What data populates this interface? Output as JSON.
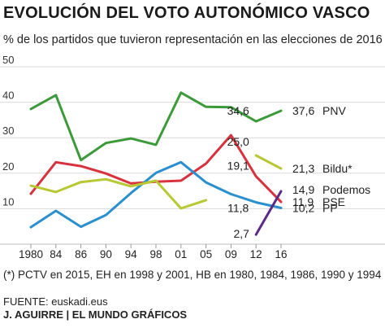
{
  "title": "EVOLUCIÓN DEL VOTO AUTONÓMICO VASCO",
  "subtitle": "% de los partidos que tuvieron representación en las elecciones de 2016",
  "footnote": "(*) PCTV en 2015, EH en 1998 y 2001, HB en 1980, 1984, 1986, 1990 y 1994",
  "source": "FUENTE: euskadi.eus",
  "credit": "J. AGUIRRE | EL MUNDO GRÁFICOS",
  "chart_data": {
    "type": "line",
    "title": "EVOLUCIÓN DEL VOTO AUTONÓMICO VASCO",
    "ylim": [
      0,
      50
    ],
    "yticks": [
      10,
      20,
      30,
      40,
      50
    ],
    "grid": true,
    "categories": [
      "1980",
      "84",
      "86",
      "90",
      "94",
      "98",
      "01",
      "05",
      "09",
      "12",
      "16"
    ],
    "series": [
      {
        "name": "PNV",
        "color": "#3d9a3a",
        "values": [
          38.1,
          42.0,
          23.7,
          28.5,
          29.8,
          28.0,
          42.7,
          38.7,
          38.6,
          34.6,
          37.6
        ],
        "labels": [
          null,
          null,
          null,
          null,
          null,
          null,
          null,
          null,
          null,
          "34,6",
          "37,6"
        ]
      },
      {
        "name": "PSE",
        "color": "#d8323e",
        "values": [
          14.2,
          23.1,
          22.0,
          19.9,
          17.1,
          17.6,
          17.9,
          22.7,
          30.7,
          19.1,
          11.9
        ],
        "labels": [
          null,
          null,
          null,
          null,
          null,
          null,
          null,
          null,
          null,
          "19,1",
          "11,9"
        ]
      },
      {
        "name": "PP",
        "color": "#2a8fcf",
        "values": [
          4.8,
          9.4,
          4.9,
          8.2,
          14.4,
          20.1,
          23.1,
          17.4,
          14.1,
          11.8,
          10.2
        ],
        "labels": [
          null,
          null,
          null,
          null,
          null,
          null,
          null,
          null,
          null,
          "11,8",
          "10,2"
        ]
      },
      {
        "name": "Bildu*",
        "color": "#b8c832",
        "values": [
          16.5,
          14.7,
          17.5,
          18.3,
          16.3,
          17.9,
          10.1,
          12.4,
          null,
          25.0,
          21.3
        ],
        "labels": [
          null,
          null,
          null,
          null,
          null,
          null,
          null,
          null,
          null,
          "25,0",
          "21,3"
        ]
      },
      {
        "name": "Podemos",
        "color": "#5b2a86",
        "values": [
          null,
          null,
          null,
          null,
          null,
          null,
          null,
          null,
          null,
          2.7,
          14.9
        ],
        "labels": [
          null,
          null,
          null,
          null,
          null,
          null,
          null,
          null,
          null,
          "2,7",
          "14,9"
        ]
      }
    ]
  }
}
